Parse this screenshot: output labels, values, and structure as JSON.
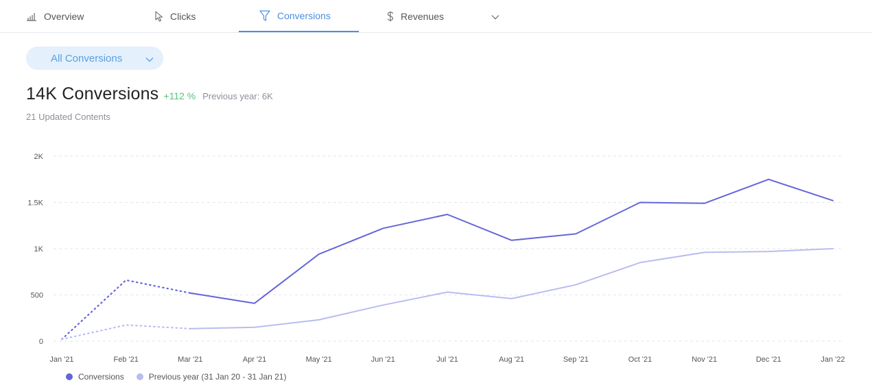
{
  "tabs": [
    {
      "label": "Overview",
      "icon": "bar-chart-icon"
    },
    {
      "label": "Clicks",
      "icon": "cursor-icon"
    },
    {
      "label": "Conversions",
      "icon": "funnel-icon",
      "active": true
    },
    {
      "label": "Revenues",
      "icon": "dollar-icon"
    }
  ],
  "filter": {
    "selected": "All Conversions"
  },
  "summary": {
    "value": "14K Conversions",
    "change": "+112 %",
    "previous": "Previous year: 6K",
    "subtitle": "21 Updated Contents"
  },
  "colors": {
    "accent": "#4a8fe0",
    "conversions": "#6366d8",
    "previous": "#b9bcf0",
    "positive": "#58c27d"
  },
  "chart_data": {
    "type": "line",
    "categories": [
      "Jan '21",
      "Feb '21",
      "Mar '21",
      "Apr '21",
      "May '21",
      "Jun '21",
      "Jul '21",
      "Aug '21",
      "Sep '21",
      "Oct '21",
      "Nov '21",
      "Dec '21",
      "Jan '22"
    ],
    "yticks": [
      0,
      500,
      1000,
      1500,
      2000
    ],
    "ytick_labels": [
      "0",
      "500",
      "1K",
      "1.5K",
      "2K"
    ],
    "ylim": [
      0,
      2000
    ],
    "grid": true,
    "legend_position": "bottom-left",
    "series": [
      {
        "name": "Conversions",
        "color": "#6366d8",
        "values": [
          20,
          660,
          520,
          410,
          940,
          1220,
          1370,
          1090,
          1160,
          1500,
          1490,
          1750,
          1520
        ],
        "dotted_until_index": 2
      },
      {
        "name": "Previous year (31 Jan 20 - 31 Jan 21)",
        "color": "#b9bcf0",
        "values": [
          20,
          175,
          135,
          150,
          230,
          390,
          530,
          460,
          610,
          850,
          960,
          970,
          1000
        ],
        "dotted_until_index": 2
      }
    ]
  }
}
